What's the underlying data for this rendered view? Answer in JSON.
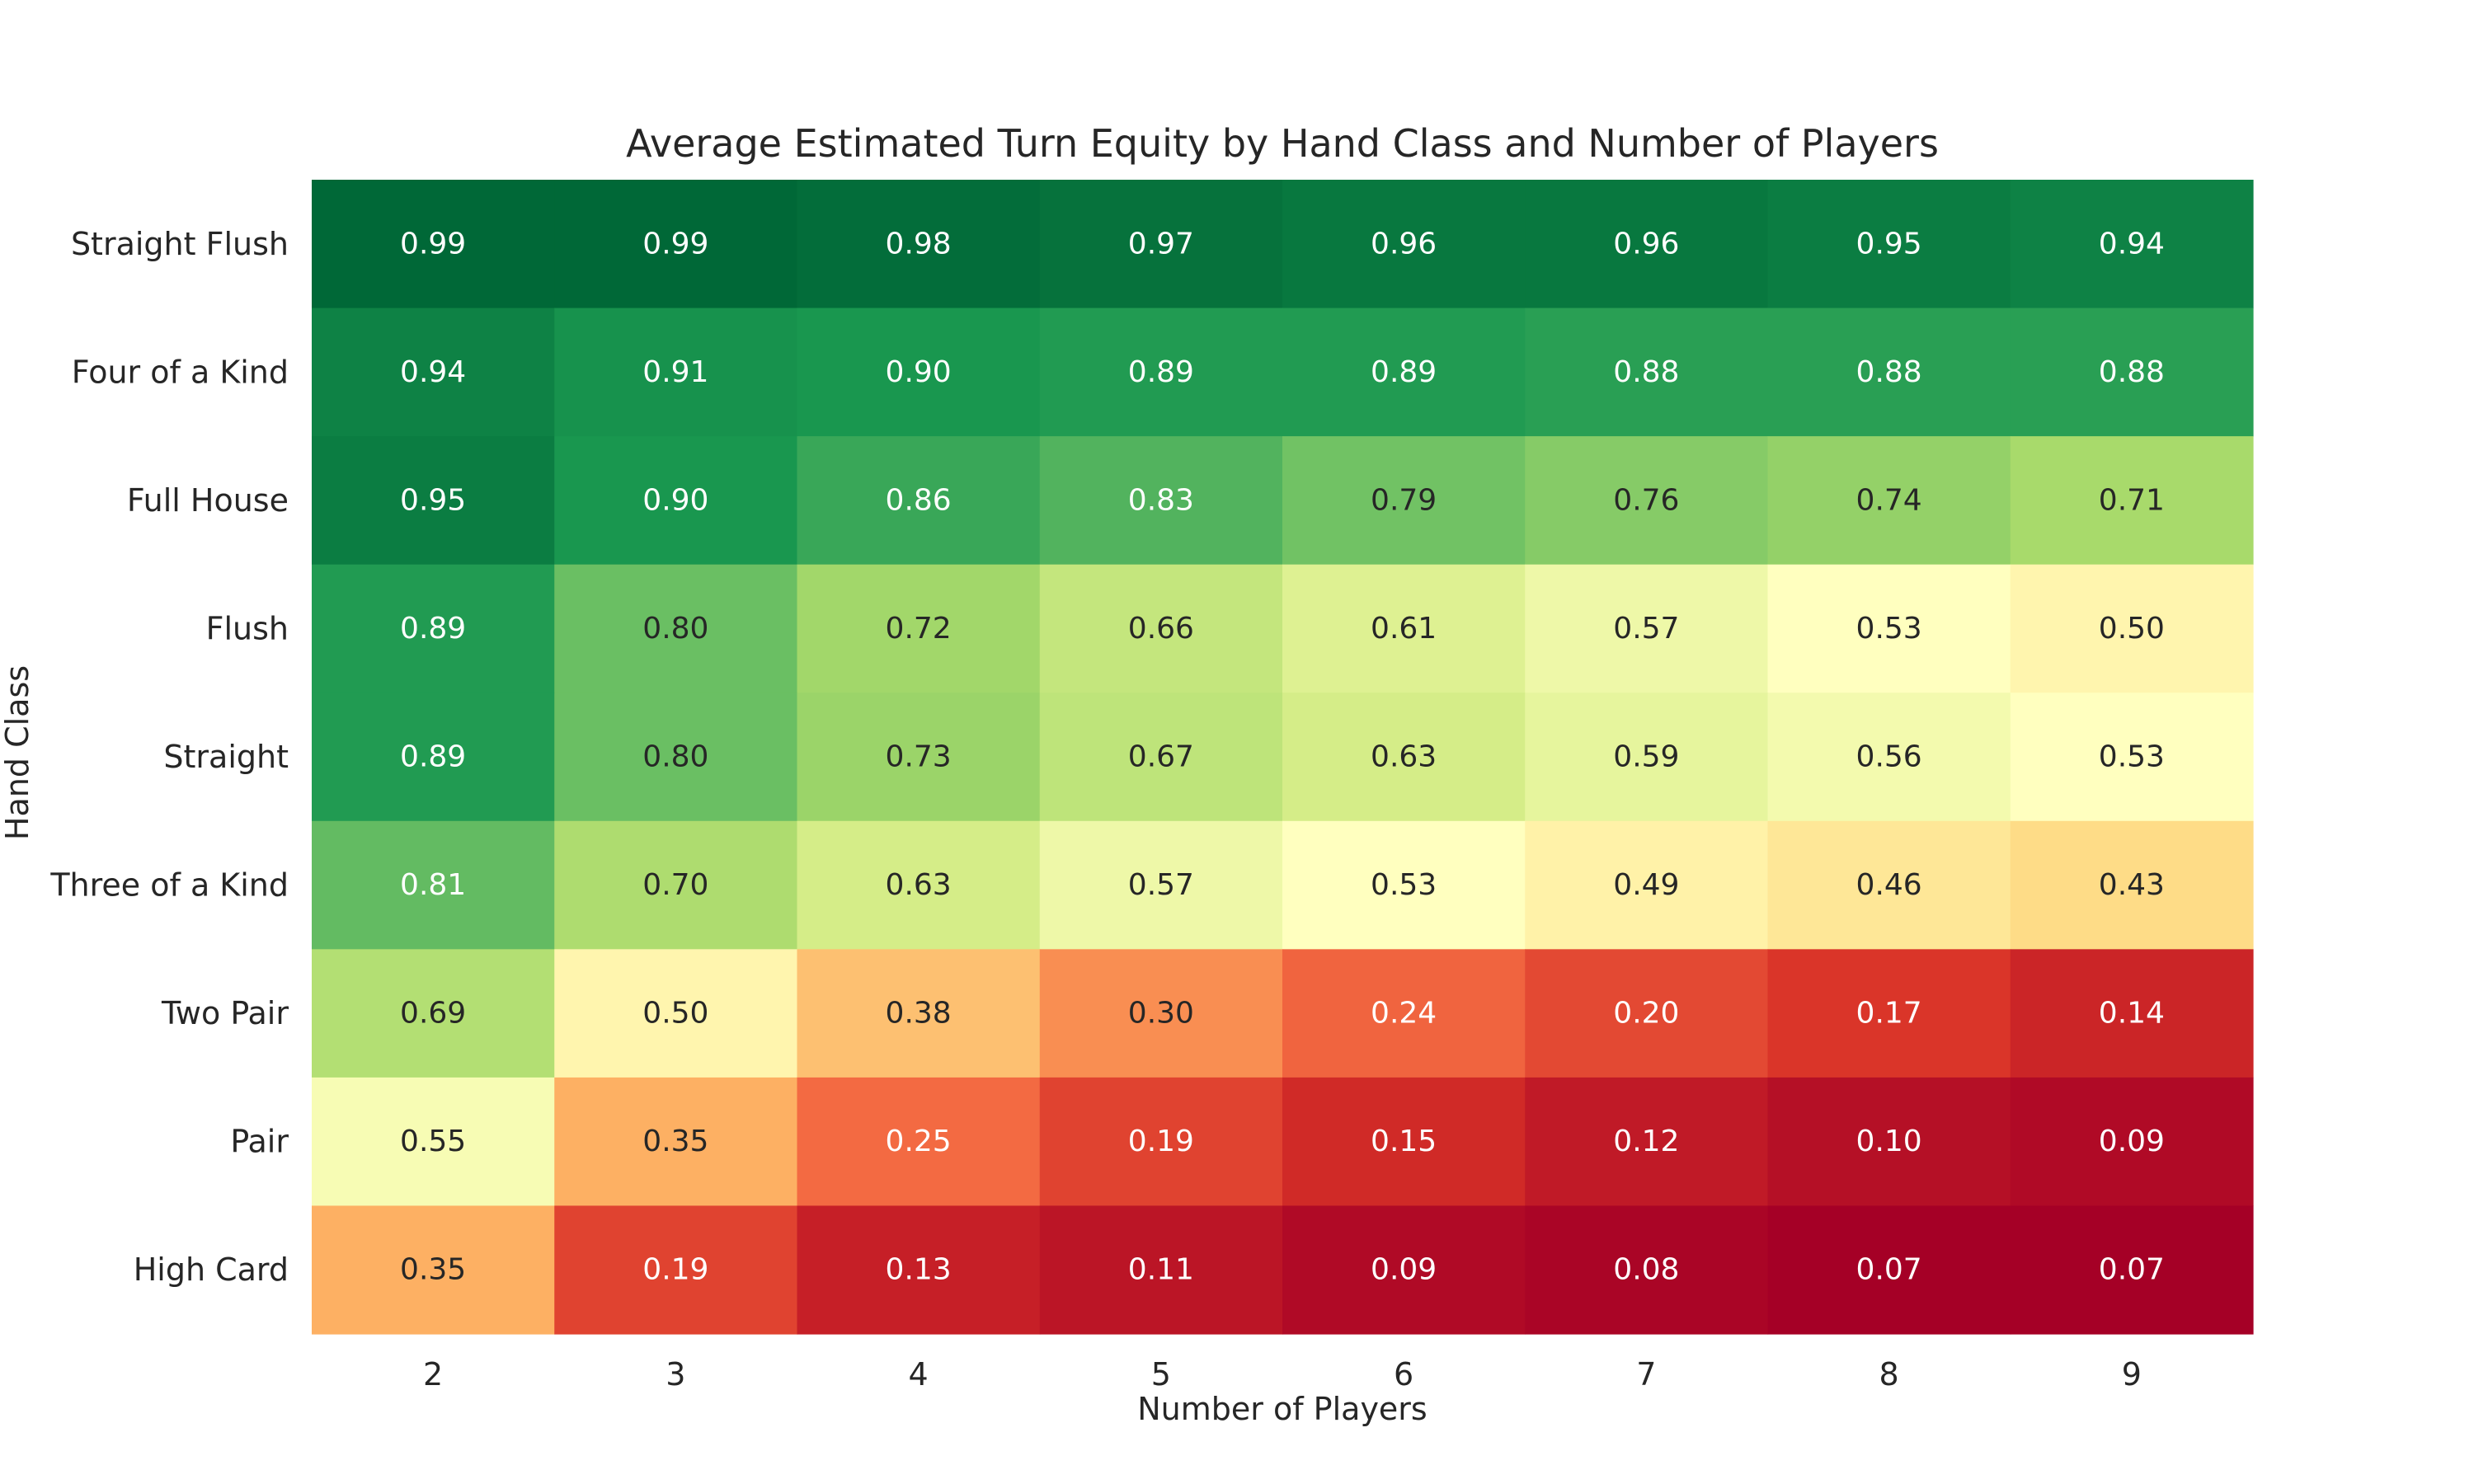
{
  "chart_data": {
    "type": "heatmap",
    "title": "Average Estimated Turn Equity by Hand Class and Number of Players",
    "xlabel": "Number of Players",
    "ylabel": "Hand Class",
    "x": [
      "2",
      "3",
      "4",
      "5",
      "6",
      "7",
      "8",
      "9"
    ],
    "y": [
      "Straight Flush",
      "Four of a Kind",
      "Full House",
      "Flush",
      "Straight",
      "Three of a Kind",
      "Two Pair",
      "Pair",
      "High Card"
    ],
    "values": [
      [
        0.99,
        0.99,
        0.98,
        0.97,
        0.96,
        0.96,
        0.95,
        0.94
      ],
      [
        0.94,
        0.91,
        0.9,
        0.89,
        0.89,
        0.88,
        0.88,
        0.88
      ],
      [
        0.95,
        0.9,
        0.86,
        0.83,
        0.79,
        0.76,
        0.74,
        0.71
      ],
      [
        0.89,
        0.8,
        0.72,
        0.66,
        0.61,
        0.57,
        0.53,
        0.5
      ],
      [
        0.89,
        0.8,
        0.73,
        0.67,
        0.63,
        0.59,
        0.56,
        0.53
      ],
      [
        0.81,
        0.7,
        0.63,
        0.57,
        0.53,
        0.49,
        0.46,
        0.43
      ],
      [
        0.69,
        0.5,
        0.38,
        0.3,
        0.24,
        0.2,
        0.17,
        0.14
      ],
      [
        0.55,
        0.35,
        0.25,
        0.19,
        0.15,
        0.12,
        0.1,
        0.09
      ],
      [
        0.35,
        0.19,
        0.13,
        0.11,
        0.09,
        0.08,
        0.07,
        0.07
      ]
    ],
    "value_format": "0.00",
    "colormap": "RdYlGn",
    "color_range": [
      0.07,
      0.99
    ],
    "grid": false,
    "colorbar": false
  }
}
